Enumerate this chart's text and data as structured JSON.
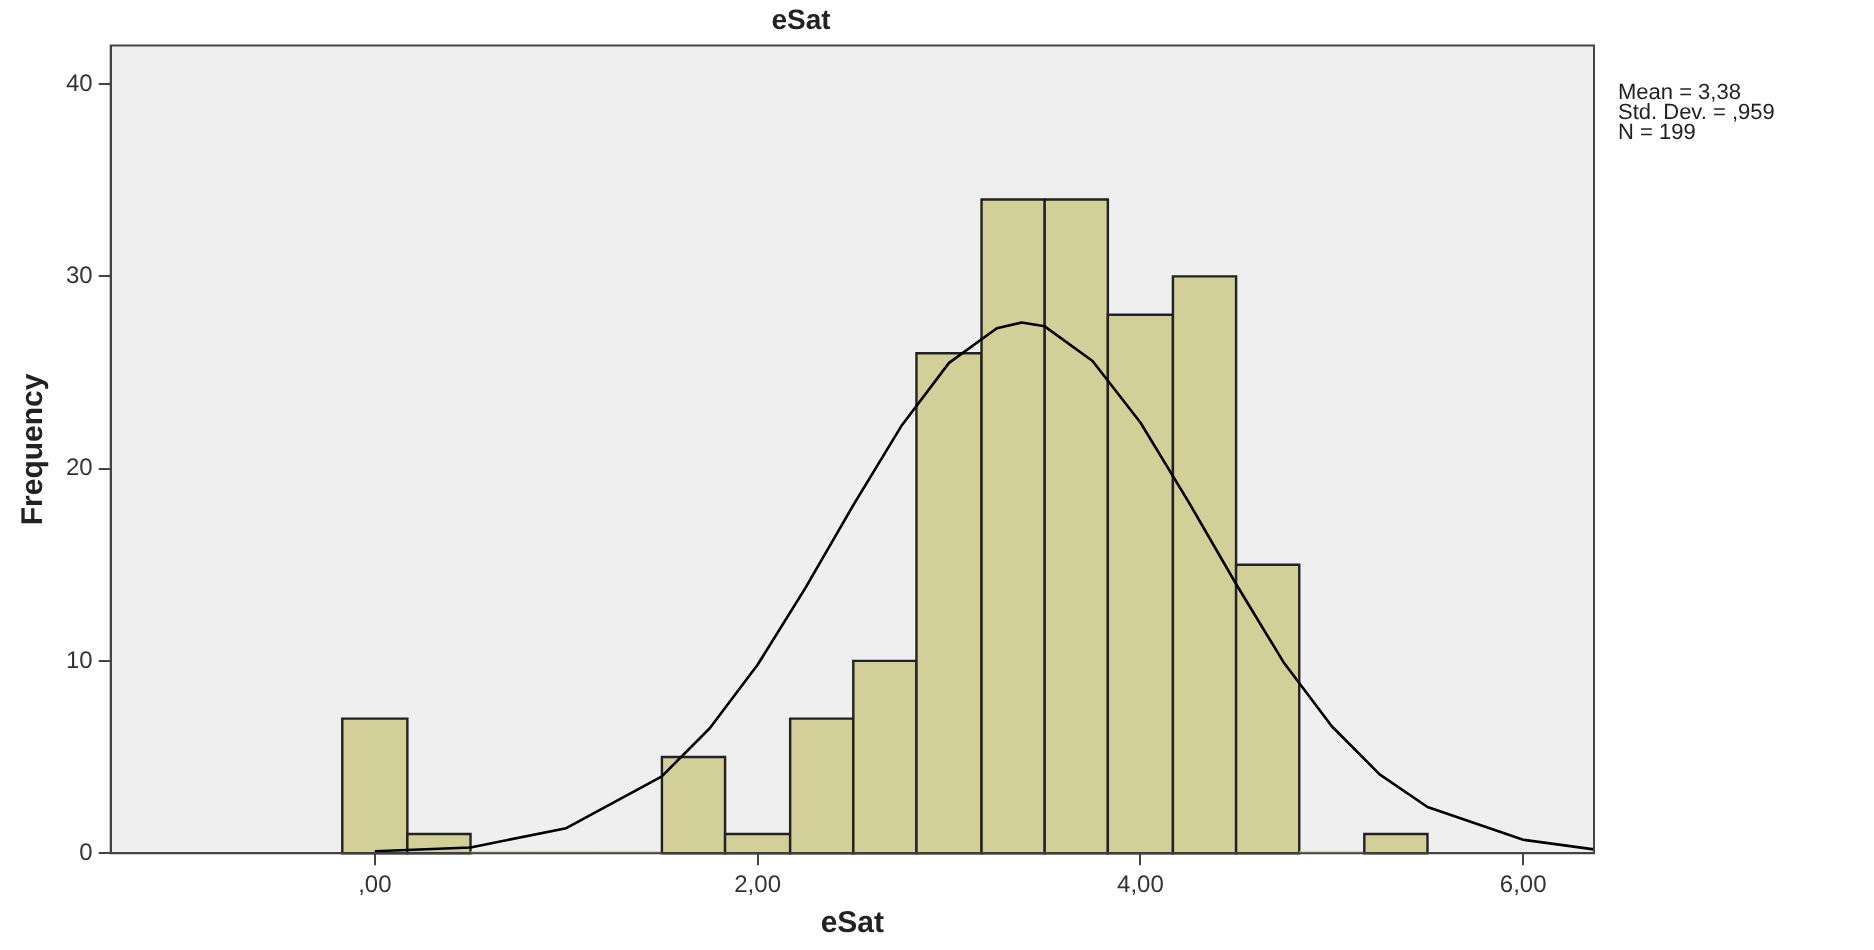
{
  "chart_data": {
    "type": "histogram",
    "title": "eSat",
    "xlabel": "eSat",
    "ylabel": "Frequency",
    "bins": [
      -0.17,
      0.17,
      0.5,
      0.83,
      1.17,
      1.5,
      1.83,
      2.17,
      2.5,
      2.83,
      3.17,
      3.5,
      3.83,
      4.17,
      4.5,
      4.83,
      5.17,
      5.5
    ],
    "values": [
      7,
      1,
      0,
      0,
      0,
      5,
      1,
      7,
      10,
      26,
      34,
      34,
      28,
      30,
      15,
      0,
      1
    ],
    "color": "#d3cf98",
    "series": [
      {
        "type": "line",
        "color": "#000000",
        "x": [
          0,
          0.5,
          1,
          1.5,
          1.75,
          2,
          2.25,
          2.5,
          2.75,
          3,
          3.25,
          3.38,
          3.5,
          3.75,
          4,
          4.25,
          4.5,
          4.75,
          5,
          5.25,
          5.5,
          6,
          6.37
        ],
        "values": [
          0.1,
          0.3,
          1.3,
          4,
          6.5,
          9.8,
          13.8,
          18.1,
          22.2,
          25.5,
          27.3,
          27.6,
          27.4,
          25.6,
          22.4,
          18.3,
          14,
          9.9,
          6.6,
          4.1,
          2.4,
          0.7,
          0.2
        ]
      }
    ],
    "xlim": [
      -1.38,
      6.37
    ],
    "xticks": [
      {
        "value": 0,
        "label": ",00"
      },
      {
        "value": 2,
        "label": "2,00"
      },
      {
        "value": 4,
        "label": "4,00"
      },
      {
        "value": 6,
        "label": "6,00"
      }
    ],
    "ylim": [
      0,
      42
    ],
    "yticks": [
      0,
      10,
      20,
      30,
      40
    ],
    "grid": false,
    "legend": false,
    "marker": "none",
    "line_style": "solid",
    "annotations": [
      "Mean = 3,38",
      "Std. Dev. = ,959",
      "N = 199"
    ]
  }
}
